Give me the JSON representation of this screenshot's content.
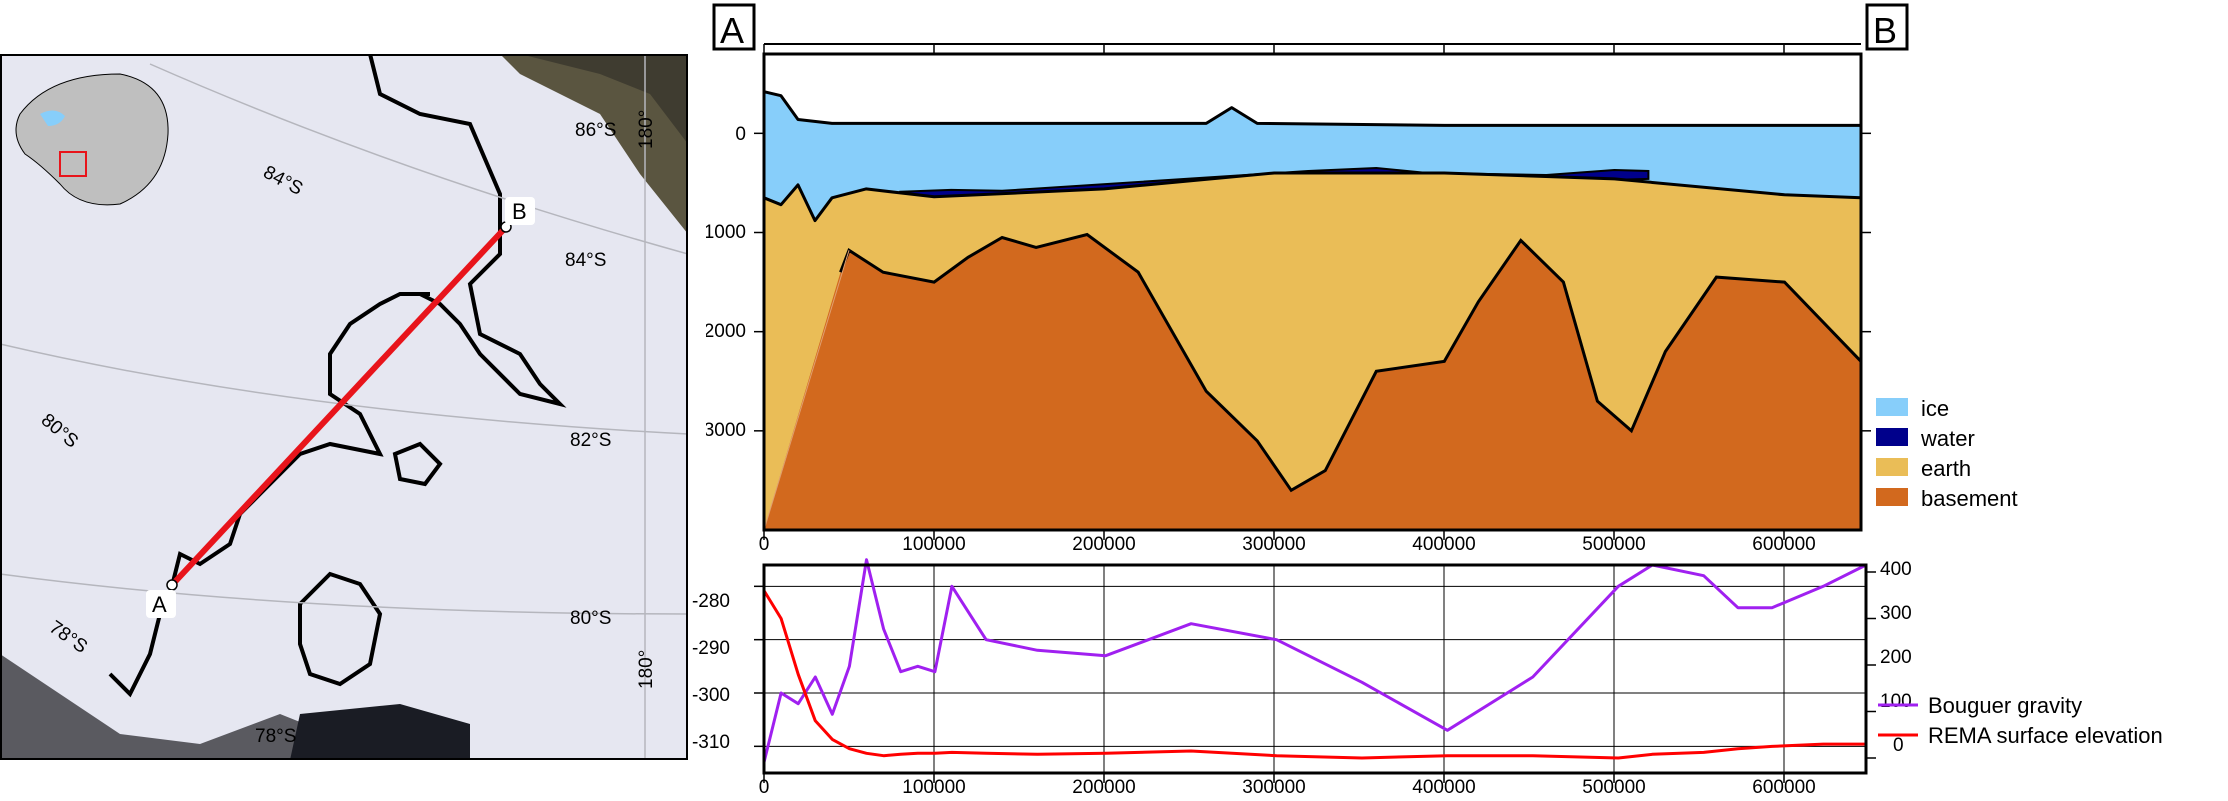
{
  "map": {
    "latitude_labels": [
      "84°S",
      "86°S",
      "84°S",
      "82°S",
      "80°S",
      "80°S",
      "78°S",
      "78°S"
    ],
    "longitude_labels": [
      "180°",
      "180°"
    ],
    "point_a": "A",
    "point_b": "B",
    "colors": {
      "profile_line": "#e8141b",
      "ice_shelf": "#e8e8f2",
      "inset_box": "#e8141b"
    }
  },
  "cross_section": {
    "label_a": "A",
    "label_b": "B",
    "y_ticks": [
      "0",
      "1000",
      "2000",
      "3000"
    ],
    "x_ticks": [
      "0",
      "100000",
      "200000",
      "300000",
      "400000",
      "500000",
      "600000"
    ],
    "x_range": [
      0,
      645000
    ],
    "y_range": [
      -800,
      4000
    ],
    "legend": [
      "ice",
      "water",
      "earth",
      "basement"
    ],
    "colors": {
      "ice": "#87cefa",
      "water": "#00008b",
      "earth": "#eabd57",
      "basement": "#d2691e"
    }
  },
  "profile": {
    "left_ticks": [
      "-280",
      "-290",
      "-300",
      "-310"
    ],
    "right_ticks": [
      "400",
      "300",
      "200",
      "100",
      "0"
    ],
    "x_ticks": [
      "0",
      "100000",
      "200000",
      "300000",
      "400000",
      "500000",
      "600000"
    ],
    "legend": [
      "Bouguer gravity",
      "REMA surface elevation"
    ],
    "colors": {
      "gravity": "#a020f0",
      "elevation": "#ff0000"
    }
  },
  "chart_data": [
    {
      "type": "area",
      "x_range": [
        0,
        645000
      ],
      "ylim": [
        -800,
        4000
      ],
      "series": [
        {
          "name": "ice",
          "x": [
            0,
            10000,
            20000,
            40000,
            100000,
            200000,
            260000,
            275000,
            290000,
            400000,
            500000,
            600000,
            645000
          ],
          "top": [
            -420,
            -380,
            -140,
            -100,
            -100,
            -100,
            -100,
            -260,
            -100,
            -80,
            -80,
            -80,
            -80
          ]
        },
        {
          "name": "water",
          "x": [
            80000,
            110000,
            140000,
            320000,
            360000,
            390000,
            460000,
            500000,
            520000
          ],
          "top": [
            590,
            570,
            580,
            380,
            350,
            400,
            420,
            370,
            380
          ]
        },
        {
          "name": "earth",
          "x": [
            0,
            10000,
            20000,
            30000,
            40000,
            60000,
            100000,
            200000,
            300000,
            400000,
            500000,
            600000,
            645000
          ],
          "top": [
            650,
            720,
            520,
            880,
            650,
            560,
            640,
            560,
            400,
            400,
            460,
            620,
            650
          ]
        },
        {
          "name": "basement",
          "x": [
            45000,
            50000,
            70000,
            100000,
            120000,
            140000,
            160000,
            190000,
            220000,
            260000,
            290000,
            310000,
            330000,
            360000,
            400000,
            420000,
            445000,
            470000,
            490000,
            510000,
            530000,
            560000,
            600000,
            645000
          ],
          "top": [
            1400,
            1180,
            1400,
            1500,
            1250,
            1050,
            1150,
            1020,
            1400,
            2600,
            3100,
            3600,
            3400,
            2400,
            2300,
            1700,
            1080,
            1500,
            2700,
            3000,
            2200,
            1450,
            1500,
            2300
          ]
        }
      ]
    },
    {
      "type": "line",
      "x": [
        0,
        10000,
        20000,
        30000,
        40000,
        50000,
        60000,
        70000,
        80000,
        90000,
        100000,
        110000,
        130000,
        160000,
        200000,
        250000,
        300000,
        350000,
        400000,
        450000,
        500000,
        520000,
        550000,
        570000,
        590000,
        620000,
        645000
      ],
      "series": [
        {
          "name": "Bouguer gravity",
          "axis": "left",
          "values": [
            -313,
            -300,
            -302,
            -297,
            -304,
            -295,
            -275,
            -288,
            -296,
            -295,
            -296,
            -280,
            -290,
            -292,
            -293,
            -287,
            -290,
            -298,
            -307,
            -297,
            -280,
            -276,
            -278,
            -284,
            -284,
            -280,
            -276
          ]
        },
        {
          "name": "REMA surface elevation",
          "axis": "right",
          "values": [
            360,
            300,
            180,
            80,
            40,
            20,
            10,
            5,
            8,
            10,
            10,
            12,
            10,
            8,
            10,
            15,
            5,
            0,
            5,
            5,
            0,
            8,
            12,
            20,
            25,
            30,
            30
          ]
        }
      ]
    }
  ]
}
